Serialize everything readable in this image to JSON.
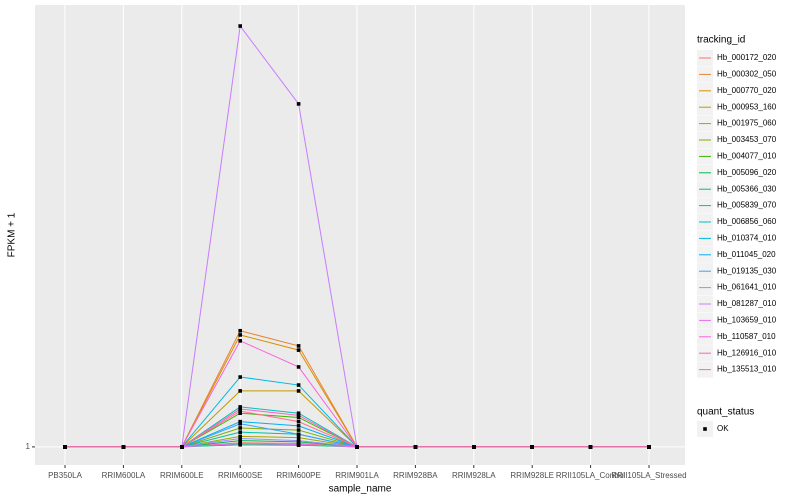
{
  "chart_data": {
    "type": "line",
    "x_label": "sample_name",
    "y_label": "FPKM + 1",
    "categories": [
      "PB350LA",
      "RRIM600LA",
      "RRIM600LE",
      "RRIM600SE",
      "RRIM600PE",
      "RRIM901LA",
      "RRIM928BA",
      "RRIM928LA",
      "RRIM928LE",
      "RRII105LA_Control",
      "RRII105LA_Stressed"
    ],
    "ylim": [
      0.57,
      11.5
    ],
    "yticks": [
      1
    ],
    "grid": true,
    "legend_title": "tracking_id",
    "series": [
      {
        "name": "Hb_000172_020",
        "color": "#F8766D",
        "values": [
          1,
          1,
          1,
          1.1,
          1.08,
          1,
          1,
          1,
          1,
          1,
          1
        ]
      },
      {
        "name": "Hb_000302_050",
        "color": "#EA8331",
        "values": [
          1,
          1,
          1,
          3.76,
          3.4,
          1,
          1,
          1,
          1,
          1,
          1
        ]
      },
      {
        "name": "Hb_000770_020",
        "color": "#D89000",
        "values": [
          1,
          1,
          1,
          3.66,
          3.3,
          1,
          1,
          1,
          1,
          1,
          1
        ]
      },
      {
        "name": "Hb_000953_160",
        "color": "#C09B00",
        "values": [
          1,
          1,
          1,
          2.33,
          2.33,
          1,
          1,
          1,
          1,
          1,
          1
        ]
      },
      {
        "name": "Hb_001975_060",
        "color": "#A3A500",
        "values": [
          1,
          1,
          1,
          1.25,
          1.22,
          1,
          1,
          1,
          1,
          1,
          1
        ]
      },
      {
        "name": "Hb_003453_070",
        "color": "#7CAE00",
        "values": [
          1,
          1,
          1,
          1.45,
          1.4,
          1,
          1,
          1,
          1,
          1,
          1
        ]
      },
      {
        "name": "Hb_004077_010",
        "color": "#39B600",
        "values": [
          1,
          1,
          1,
          1.8,
          1.7,
          1,
          1,
          1,
          1,
          1,
          1
        ]
      },
      {
        "name": "Hb_005096_020",
        "color": "#00BB4E",
        "values": [
          1,
          1,
          1,
          1.15,
          1.12,
          1,
          1,
          1,
          1,
          1,
          1
        ]
      },
      {
        "name": "Hb_005366_030",
        "color": "#00BF7D",
        "values": [
          1,
          1,
          1,
          1.05,
          1.04,
          1,
          1,
          1,
          1,
          1,
          1
        ]
      },
      {
        "name": "Hb_005839_070",
        "color": "#00C1A3",
        "values": [
          1,
          1,
          1,
          1.35,
          1.3,
          1,
          1,
          1,
          1,
          1,
          1
        ]
      },
      {
        "name": "Hb_006856_060",
        "color": "#00BFC4",
        "values": [
          1,
          1,
          1,
          1.95,
          1.8,
          1,
          1,
          1,
          1,
          1,
          1
        ]
      },
      {
        "name": "Hb_010374_010",
        "color": "#00BAE0",
        "values": [
          1,
          1,
          1,
          2.66,
          2.47,
          1,
          1,
          1,
          1,
          1,
          1
        ]
      },
      {
        "name": "Hb_011045_020",
        "color": "#00B0F6",
        "values": [
          1,
          1,
          1,
          1.6,
          1.5,
          1,
          1,
          1,
          1,
          1,
          1
        ]
      },
      {
        "name": "Hb_019135_030",
        "color": "#35A2FF",
        "values": [
          1,
          1,
          1,
          1.55,
          1.3,
          1,
          1,
          1,
          1,
          1,
          1
        ]
      },
      {
        "name": "Hb_061641_010",
        "color": "#9590FF",
        "values": [
          1,
          1,
          1,
          1.2,
          1.15,
          1,
          1,
          1,
          1,
          1,
          1
        ]
      },
      {
        "name": "Hb_081287_010",
        "color": "#C77CFF",
        "values": [
          1,
          1,
          1,
          11.0,
          9.15,
          1,
          1,
          1,
          1,
          1,
          1
        ]
      },
      {
        "name": "Hb_103659_010",
        "color": "#E76BF3",
        "values": [
          1,
          1,
          1,
          1.08,
          1.06,
          1,
          1,
          1,
          1,
          1,
          1
        ]
      },
      {
        "name": "Hb_110587_010",
        "color": "#FA62DB",
        "values": [
          1,
          1,
          1,
          3.52,
          2.9,
          1,
          1,
          1,
          1,
          1,
          1
        ]
      },
      {
        "name": "Hb_126916_010",
        "color": "#FF62BC",
        "values": [
          1,
          1,
          1,
          1.9,
          1.75,
          1,
          1,
          1,
          1,
          1,
          1
        ]
      },
      {
        "name": "Hb_135513_010",
        "color": "#FF6C91",
        "values": [
          1,
          1,
          1,
          1.85,
          1.6,
          1,
          1,
          1,
          1,
          1,
          1
        ]
      }
    ],
    "shape_legend": {
      "title": "quant_status",
      "labels": [
        "OK"
      ]
    }
  }
}
